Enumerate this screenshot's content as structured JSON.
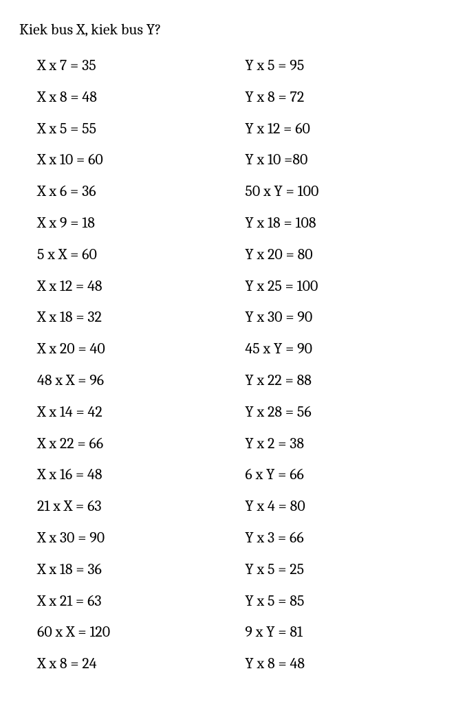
{
  "title": "Kiek bus X, kiek bus Y?",
  "font_family": "Cambria, Georgia, serif",
  "font_size_pt": 16,
  "text_color": "#000000",
  "background_color": "#ffffff",
  "columns": {
    "left": [
      "X x 7 = 35",
      "X x 8 = 48",
      "X x 5 = 55",
      "X x 10 = 60",
      "X x 6 = 36",
      "X x 9 = 18",
      "5 x X = 60",
      "X x 12 = 48",
      "X x 18 = 32",
      "X x 20 = 40",
      "48 x X = 96",
      "X x 14 = 42",
      "X x 22 = 66",
      "X x 16 = 48",
      "21 x X = 63",
      "X x 30 = 90",
      "X x 18 = 36",
      "X x 21 = 63",
      "60 x X = 120",
      "X x 8 = 24"
    ],
    "right": [
      "Y x 5 = 95",
      "Y x 8 = 72",
      "Y x 12 = 60",
      "Y x 10 =80",
      "50 x Y = 100",
      "Y x 18 = 108",
      "Y x 20 = 80",
      "Y x 25 = 100",
      "Y x 30 = 90",
      "45 x Y = 90",
      "Y x 22 = 88",
      "Y x 28 = 56",
      "Y x 2 = 38",
      "6 x Y = 66",
      "Y x 4 = 80",
      "Y x 3 = 66",
      "Y x 5 = 25",
      "Y x 5 = 85",
      "9 x Y = 81",
      "Y x 8 = 48"
    ]
  }
}
